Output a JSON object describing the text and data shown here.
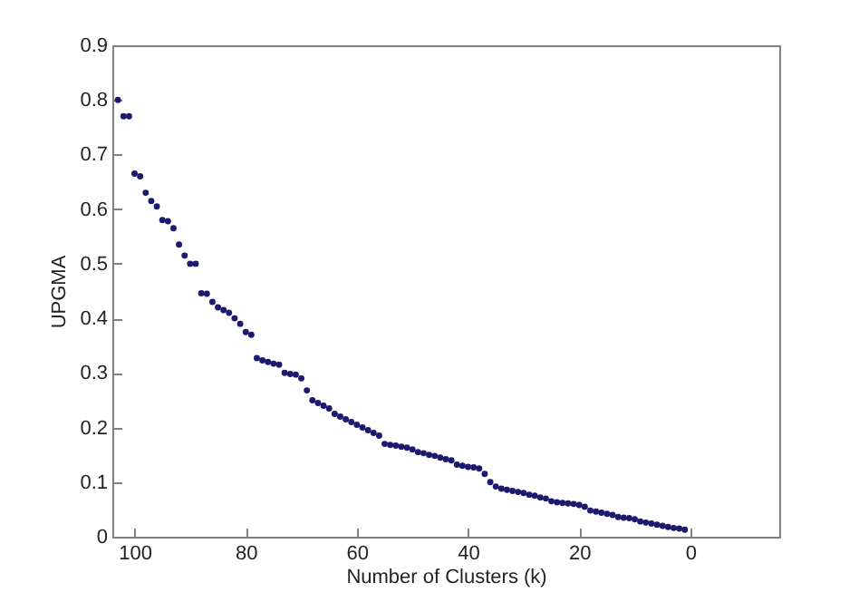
{
  "chart_data": {
    "type": "scatter",
    "xlabel": "Number of Clusters (k)",
    "ylabel": "UPGMA",
    "xlim": [
      104,
      -16
    ],
    "xticks": [
      100,
      80,
      60,
      40,
      20,
      0
    ],
    "ylim": [
      0,
      0.9
    ],
    "yticks": [
      0,
      0.1,
      0.2,
      0.3,
      0.4,
      0.5,
      0.6,
      0.7,
      0.8,
      0.9
    ],
    "grid": false,
    "marker": "circle",
    "x": [
      103,
      102,
      101,
      100,
      99,
      98,
      97,
      96,
      95,
      94,
      93,
      92,
      91,
      90,
      89,
      88,
      87,
      86,
      85,
      84,
      83,
      82,
      81,
      80,
      79,
      78,
      77,
      76,
      75,
      74,
      73,
      72,
      71,
      70,
      69,
      68,
      67,
      66,
      65,
      64,
      63,
      62,
      61,
      60,
      59,
      58,
      57,
      56,
      55,
      54,
      53,
      52,
      51,
      50,
      49,
      48,
      47,
      46,
      45,
      44,
      43,
      42,
      41,
      40,
      39,
      38,
      37,
      36,
      35,
      34,
      33,
      32,
      31,
      30,
      29,
      28,
      27,
      26,
      25,
      24,
      23,
      22,
      21,
      20,
      19,
      18,
      17,
      16,
      15,
      14,
      13,
      12,
      11,
      10,
      9,
      8,
      7,
      6,
      5,
      4,
      3,
      2,
      1
    ],
    "series": [
      {
        "color": "#1a1a6e",
        "values": [
          0.8,
          0.77,
          0.77,
          0.665,
          0.66,
          0.63,
          0.615,
          0.605,
          0.58,
          0.578,
          0.565,
          0.535,
          0.515,
          0.5,
          0.5,
          0.446,
          0.445,
          0.43,
          0.42,
          0.415,
          0.41,
          0.4,
          0.39,
          0.375,
          0.37,
          0.327,
          0.323,
          0.32,
          0.317,
          0.315,
          0.3,
          0.298,
          0.297,
          0.29,
          0.268,
          0.25,
          0.245,
          0.24,
          0.235,
          0.225,
          0.22,
          0.215,
          0.21,
          0.205,
          0.2,
          0.195,
          0.19,
          0.185,
          0.17,
          0.168,
          0.167,
          0.165,
          0.163,
          0.16,
          0.155,
          0.153,
          0.15,
          0.148,
          0.145,
          0.142,
          0.14,
          0.132,
          0.13,
          0.128,
          0.127,
          0.125,
          0.115,
          0.1,
          0.092,
          0.088,
          0.086,
          0.084,
          0.082,
          0.08,
          0.077,
          0.075,
          0.072,
          0.07,
          0.065,
          0.063,
          0.062,
          0.061,
          0.06,
          0.058,
          0.055,
          0.048,
          0.046,
          0.044,
          0.042,
          0.04,
          0.036,
          0.035,
          0.034,
          0.032,
          0.028,
          0.026,
          0.024,
          0.022,
          0.02,
          0.018,
          0.016,
          0.015,
          0.013
        ]
      }
    ]
  }
}
